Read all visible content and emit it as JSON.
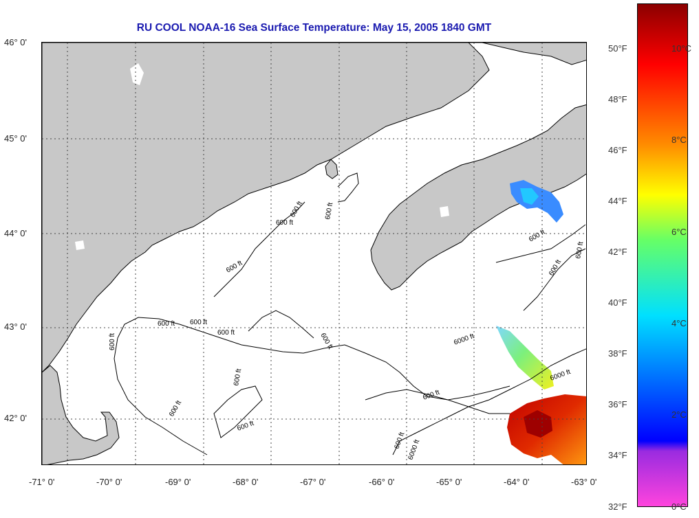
{
  "title": "RU COOL  NOAA-16  Sea Surface Temperature:  May 15, 2005 1840 GMT",
  "axes": {
    "lat_labels": [
      {
        "text": "46° 0'",
        "lat": 46
      },
      {
        "text": "45° 0'",
        "lat": 45
      },
      {
        "text": "44° 0'",
        "lat": 44
      },
      {
        "text": "43° 0'",
        "lat": 43
      },
      {
        "text": "42° 0'",
        "lat": 42
      }
    ],
    "lon_labels": [
      {
        "text": "-71° 0'",
        "lon": -71
      },
      {
        "text": "-70° 0'",
        "lon": -70
      },
      {
        "text": "-69° 0'",
        "lon": -69
      },
      {
        "text": "-68° 0'",
        "lon": -68
      },
      {
        "text": "-67° 0'",
        "lon": -67
      },
      {
        "text": "-66° 0'",
        "lon": -66
      },
      {
        "text": "-65° 0'",
        "lon": -65
      },
      {
        "text": "-64° 0'",
        "lon": -64
      },
      {
        "text": "-63° 0'",
        "lon": -63
      }
    ]
  },
  "contours": {
    "labels_600": [
      "600 ft",
      "600 ft",
      "600 ft",
      "600 ft",
      "600 ft",
      "600 ft",
      "600 ft",
      "600 ft",
      "600 ft",
      "600 ft",
      "600 ft",
      "600 ft",
      "600 ft",
      "600 ft",
      "600 ft",
      "600 ft",
      "600 ft"
    ],
    "labels_6000": [
      "6000 ft",
      "6000 ft",
      "6000 ft"
    ]
  },
  "colorbar": {
    "fahrenheit_ticks": [
      "50°F",
      "48°F",
      "46°F",
      "44°F",
      "42°F",
      "40°F",
      "38°F",
      "36°F",
      "34°F",
      "32°F"
    ],
    "celsius_ticks": [
      "10°C",
      "8°C",
      "6°C",
      "4°C",
      "2°C",
      "0°C"
    ],
    "colors": {
      "top": "#8b0000",
      "red": "#ff0000",
      "orange": "#ff8c00",
      "yellow": "#ffff00",
      "green": "#66ff66",
      "cyan": "#00e0ff",
      "blue": "#0000ff",
      "purple": "#9a2be0",
      "magenta": "#ff44dd"
    }
  },
  "map_colors": {
    "land": "#c8c8c8",
    "ocean": "#ffffff",
    "grid": "#444444"
  }
}
